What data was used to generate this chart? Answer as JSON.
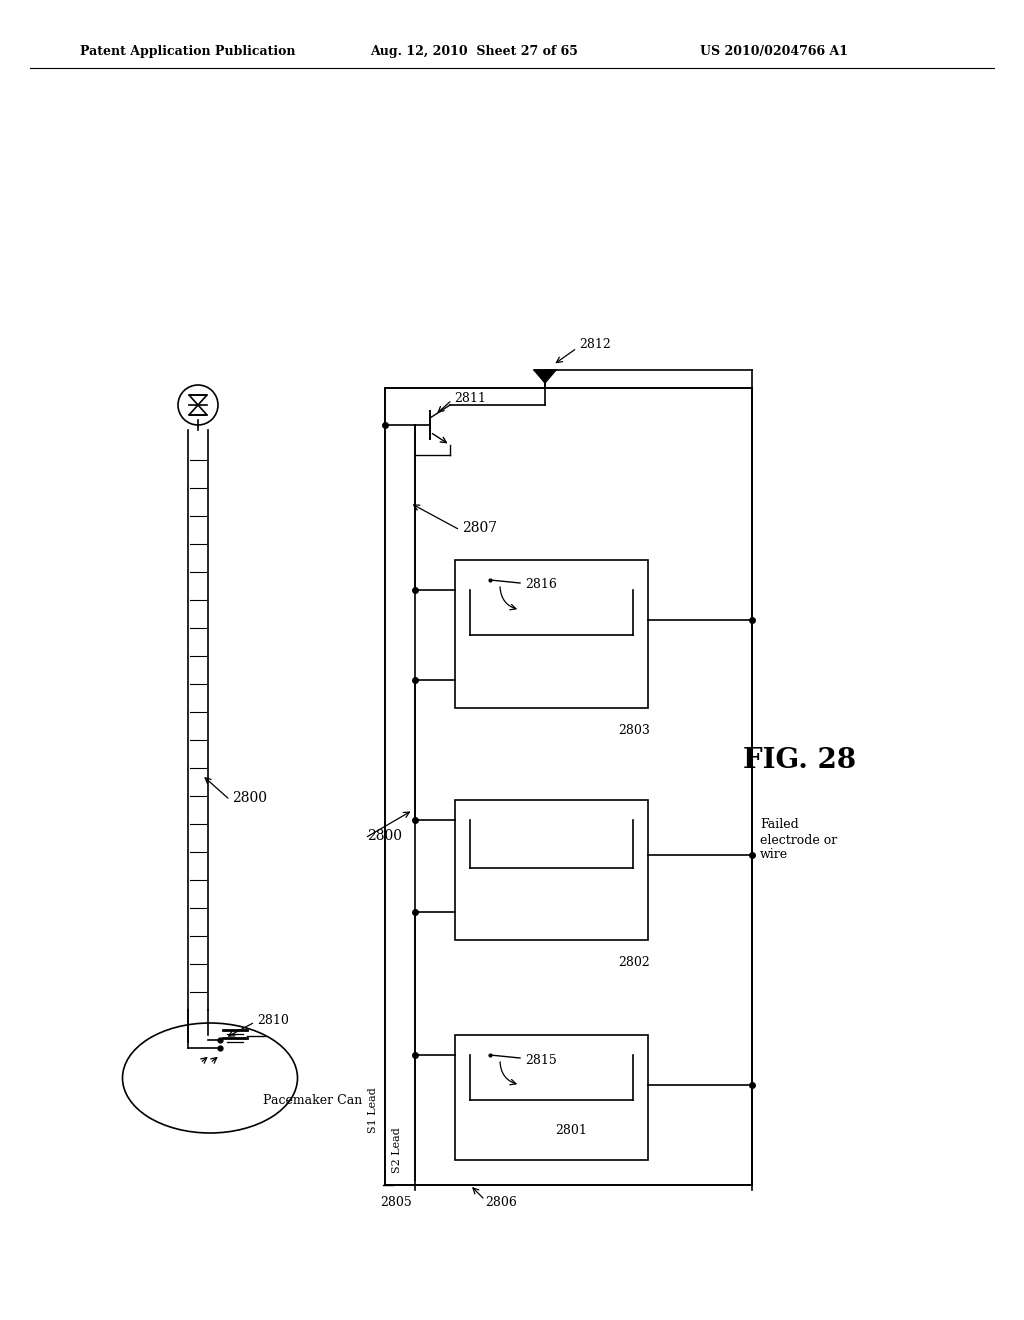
{
  "bg_color": "#ffffff",
  "header_left": "Patent Application Publication",
  "header_mid": "Aug. 12, 2010  Sheet 27 of 65",
  "header_right": "US 2010/0204766 A1",
  "fig_label": "FIG. 28",
  "figwidth": 10.24,
  "figheight": 13.2
}
